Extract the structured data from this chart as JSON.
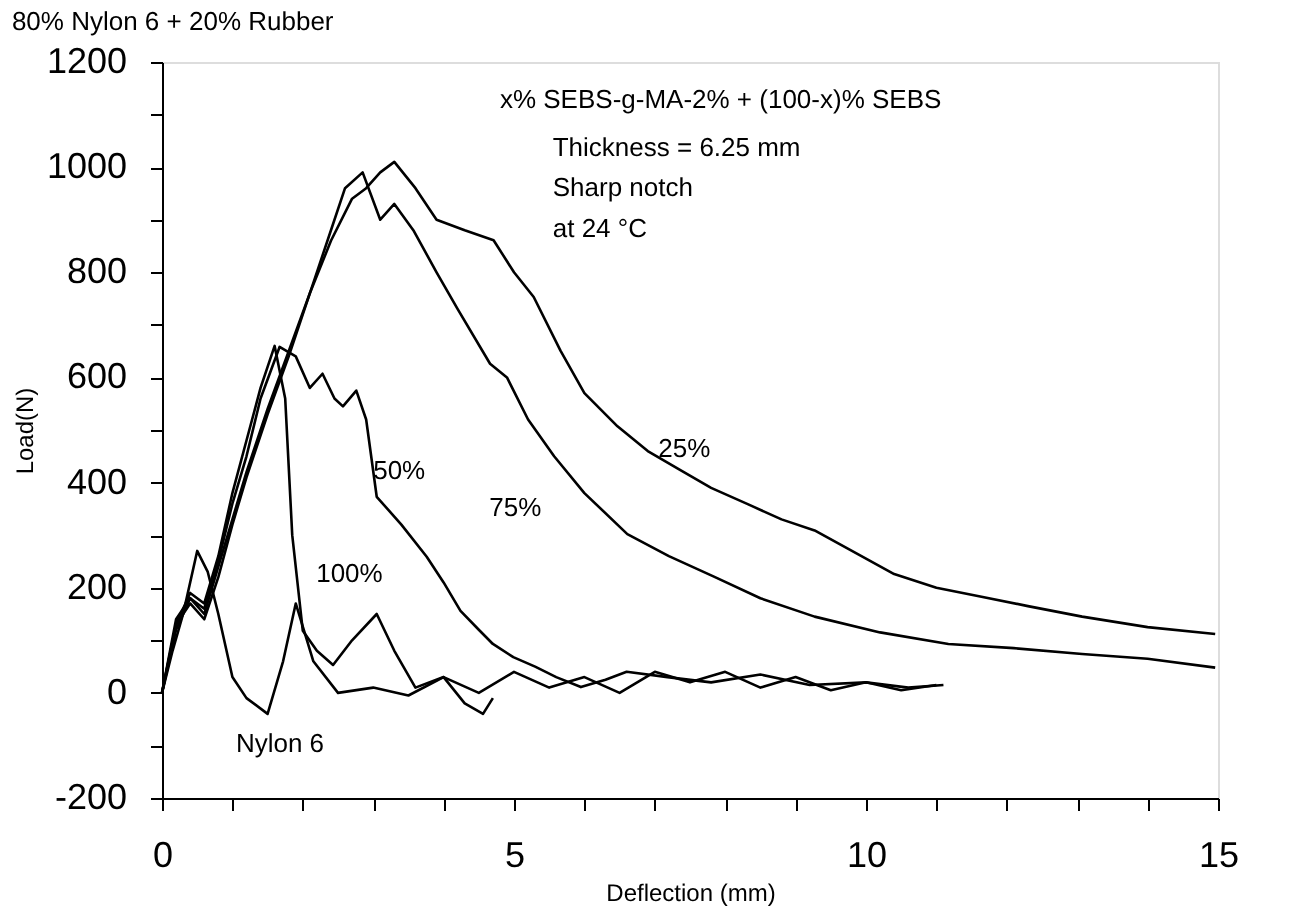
{
  "chart_data": {
    "type": "line",
    "title": "80% Nylon 6 + 20% Rubber",
    "xlabel": "Deflection (mm)",
    "ylabel": "Load(N)",
    "xlim": [
      0,
      15
    ],
    "ylim": [
      -200,
      1200
    ],
    "xticks": [
      0,
      {
        "value": 1,
        "label": null
      },
      {
        "value": 2,
        "label": null
      },
      {
        "value": 3,
        "label": null
      },
      {
        "value": 4,
        "label": null
      },
      5,
      {
        "value": 6,
        "label": null
      },
      {
        "value": 7,
        "label": null
      },
      {
        "value": 8,
        "label": null
      },
      {
        "value": 9,
        "label": null
      },
      10,
      {
        "value": 11,
        "label": null
      },
      {
        "value": 12,
        "label": null
      },
      {
        "value": 13,
        "label": null
      },
      {
        "value": 14,
        "label": null
      },
      15
    ],
    "yticks": [
      -200,
      {
        "value": -100,
        "label": null
      },
      0,
      {
        "value": 100,
        "label": null
      },
      200,
      {
        "value": 300,
        "label": null
      },
      400,
      {
        "value": 500,
        "label": null
      },
      600,
      {
        "value": 700,
        "label": null
      },
      800,
      {
        "value": 900,
        "label": null
      },
      1000,
      {
        "value": 1100,
        "label": null
      },
      1200
    ],
    "grid": false,
    "legend": false,
    "marker": "none",
    "line_style": "solid",
    "series": [
      {
        "color": "#000000",
        "x": [
          0,
          0.2,
          0.4,
          0.6,
          0.8,
          1.0,
          1.2,
          1.5,
          1.8,
          2.1,
          2.4,
          2.7,
          2.9,
          3.1,
          3.3,
          3.6,
          3.9,
          4.3,
          4.71,
          5.0,
          5.28,
          5.66,
          6.0,
          6.47,
          6.9,
          7.37,
          7.8,
          8.32,
          8.8,
          9.27,
          9.8,
          10.4,
          11.0,
          11.64,
          12.3,
          13.07,
          14.0,
          14.96
        ],
        "values": [
          0,
          120,
          180,
          150,
          240,
          330,
          420,
          540,
          650,
          760,
          860,
          940,
          960,
          990,
          1010,
          960,
          900,
          880,
          861,
          800,
          753,
          651,
          570,
          507,
          460,
          423,
          390,
          359,
          330,
          309,
          270,
          226,
          200,
          183,
          165,
          145,
          125,
          112
        ]
      },
      {
        "color": "#000000",
        "x": [
          0,
          0.2,
          0.4,
          0.6,
          0.8,
          1.0,
          1.2,
          1.5,
          1.8,
          2.1,
          2.4,
          2.6,
          2.85,
          3.1,
          3.3,
          3.57,
          3.9,
          4.2,
          4.66,
          4.9,
          5.2,
          5.57,
          6.0,
          6.61,
          7.2,
          7.84,
          8.5,
          9.27,
          10.2,
          11.17,
          12.1,
          13.07,
          14.0,
          14.96
        ],
        "values": [
          0,
          130,
          170,
          140,
          220,
          320,
          410,
          530,
          640,
          760,
          880,
          960,
          990,
          900,
          930,
          880,
          800,
          730,
          626,
          600,
          520,
          450,
          380,
          302,
          260,
          221,
          180,
          145,
          115,
          93,
          85,
          74,
          65,
          48
        ]
      },
      {
        "color": "#000000",
        "x": [
          0,
          0.2,
          0.4,
          0.6,
          0.8,
          1.0,
          1.2,
          1.4,
          1.67,
          1.9,
          2.1,
          2.28,
          2.45,
          2.57,
          2.76,
          2.9,
          3.05,
          3.4,
          3.76,
          4.0,
          4.24,
          4.5,
          4.7,
          4.99,
          5.3,
          5.6,
          5.95,
          6.3,
          6.6,
          7.18,
          7.8,
          8.5,
          9.2,
          10.0,
          10.6,
          11.1
        ],
        "values": [
          0,
          140,
          180,
          160,
          250,
          360,
          450,
          560,
          658,
          640,
          580,
          607,
          560,
          545,
          575,
          520,
          373,
          320,
          259,
          210,
          156,
          120,
          93,
          68,
          50,
          30,
          11,
          25,
          40,
          30,
          20,
          35,
          15,
          20,
          10,
          15
        ]
      },
      {
        "color": "#000000",
        "x": [
          0,
          0.2,
          0.4,
          0.6,
          0.8,
          1.0,
          1.2,
          1.4,
          1.6,
          1.75,
          1.85,
          2.0,
          2.2,
          2.43,
          2.7,
          3.05,
          3.3,
          3.6,
          4.0,
          4.5,
          5.0,
          5.5,
          6.0,
          6.5,
          7.0,
          7.5,
          8.0,
          8.5,
          9.0,
          9.5,
          10.0,
          10.5,
          11.0
        ],
        "values": [
          0,
          130,
          190,
          170,
          260,
          380,
          480,
          580,
          660,
          560,
          300,
          118,
          80,
          53,
          100,
          150,
          80,
          10,
          30,
          0,
          40,
          10,
          30,
          0,
          40,
          20,
          40,
          10,
          30,
          5,
          20,
          5,
          15
        ]
      },
      {
        "color": "#000000",
        "x": [
          0,
          0.15,
          0.3,
          0.5,
          0.65,
          0.8,
          1.0,
          1.2,
          1.5,
          1.72,
          1.9,
          2.15,
          2.5,
          3.0,
          3.5,
          4.0,
          4.3,
          4.56,
          4.7
        ],
        "values": [
          0,
          80,
          150,
          270,
          230,
          150,
          30,
          -10,
          -40,
          60,
          170,
          60,
          0,
          10,
          -5,
          30,
          -20,
          -40,
          -10
        ]
      }
    ],
    "annotations": [
      "x% SEBS-g-MA-2% + (100-x)% SEBS",
      "Thickness = 6.25 mm",
      "Sharp notch",
      "at 24 °C",
      "25%",
      "75%",
      "50%",
      "100%",
      "Nylon 6"
    ]
  }
}
